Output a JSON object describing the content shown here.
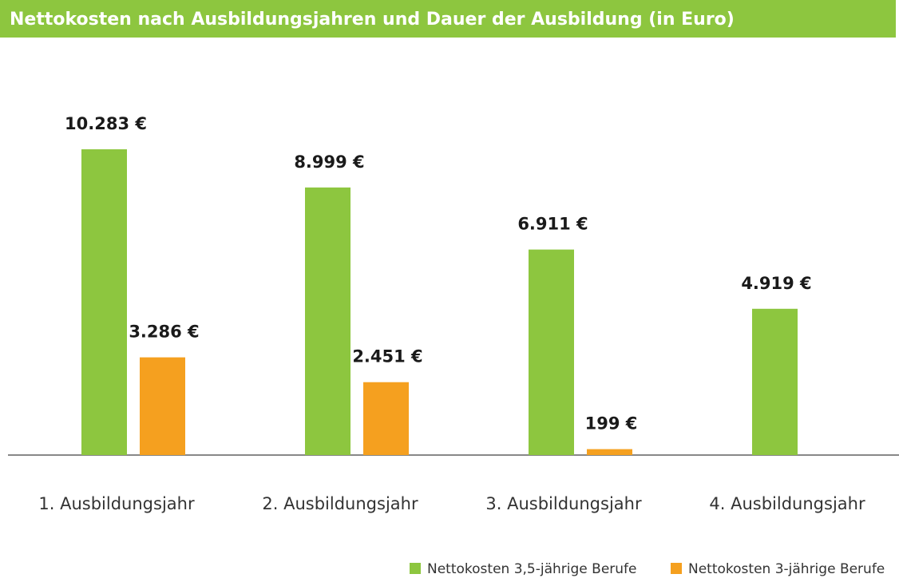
{
  "chart_data": {
    "type": "bar",
    "title": "Nettokosten nach Ausbildungsjahren und Dauer der Ausbildung (in Euro)",
    "categories": [
      "1. Ausbildungsjahr",
      "2. Ausbildungsjahr",
      "3. Ausbildungsjahr",
      "4. Ausbildungsjahr"
    ],
    "series": [
      {
        "name": "Nettokosten 3,5-jährige Berufe",
        "color": "#8dc63f",
        "values": [
          10283,
          8999,
          6911,
          4919
        ],
        "value_labels": [
          "10.283 €",
          "8.999 €",
          "6.911 €",
          "4.919 €"
        ]
      },
      {
        "name": "Nettokosten 3-jährige Berufe",
        "color": "#f5a01f",
        "values": [
          3286,
          2451,
          199,
          null
        ],
        "value_labels": [
          "3.286 €",
          "2.451 €",
          "199 €",
          null
        ]
      }
    ],
    "legend": "bottom-right"
  }
}
